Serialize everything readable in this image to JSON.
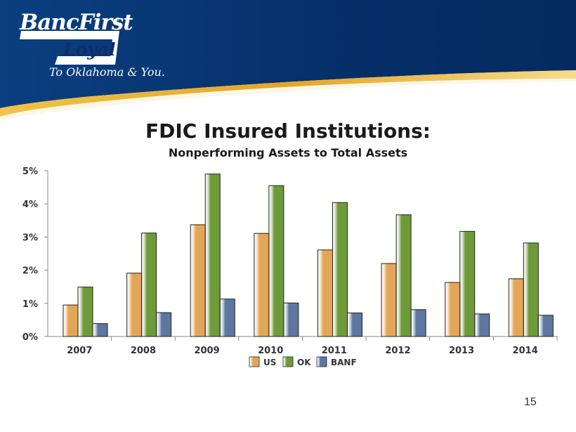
{
  "logo": {
    "brand": "BancFirst",
    "trademark": "®",
    "line2": "Loyal",
    "tagline": "To Oklahoma & You."
  },
  "colors": {
    "header_blue": "#0a3a78",
    "header_gold": "#e8b430",
    "us": "#e3a657",
    "ok": "#6f9a3a",
    "banf": "#5d77a0"
  },
  "page_number": "15",
  "chart_data": {
    "type": "bar",
    "title": "FDIC Insured Institutions:",
    "subtitle": "Nonperforming Assets to Total Assets",
    "categories": [
      "2007",
      "2008",
      "2009",
      "2010",
      "2011",
      "2012",
      "2013",
      "2014"
    ],
    "series": [
      {
        "name": "US",
        "values": [
          0.95,
          1.91,
          3.37,
          3.11,
          2.61,
          2.2,
          1.63,
          1.74
        ],
        "color": "#e3a657"
      },
      {
        "name": "OK",
        "values": [
          1.49,
          3.12,
          4.9,
          4.55,
          4.04,
          3.67,
          3.17,
          2.82
        ],
        "color": "#6f9a3a"
      },
      {
        "name": "BANF",
        "values": [
          0.39,
          0.72,
          1.13,
          1.01,
          0.71,
          0.81,
          0.68,
          0.64
        ],
        "color": "#5d77a0"
      }
    ],
    "yticks": [
      "0%",
      "1%",
      "2%",
      "3%",
      "4%",
      "5%"
    ],
    "ylim": [
      0,
      5
    ],
    "legend_position": "bottom",
    "grid": false
  }
}
